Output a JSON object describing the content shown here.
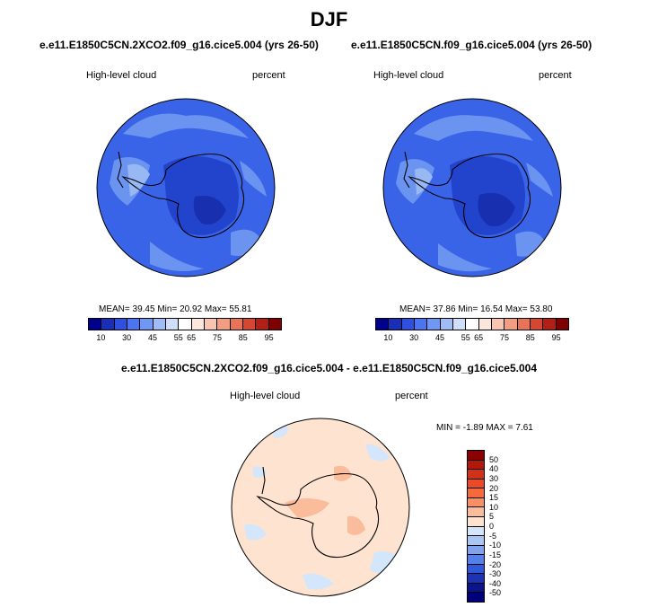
{
  "title": "DJF",
  "panels": [
    {
      "case": "e.e11.E1850C5CN.2XCO2.f09_g16.cice5.004 (yrs 26-50)",
      "variable": "High-level cloud",
      "units": "percent",
      "mean_label": "MEAN=",
      "mean": "39.45",
      "min_label": "Min=",
      "min": "20.92",
      "max_label": "Max=",
      "max": "55.81"
    },
    {
      "case": "e.e11.E1850C5CN.f09_g16.cice5.004 (yrs 26-50)",
      "variable": "High-level cloud",
      "units": "percent",
      "mean_label": "MEAN=",
      "mean": "37.86",
      "min_label": "Min=",
      "min": "16.54",
      "max_label": "Max=",
      "max": "53.80"
    }
  ],
  "diff_panel": {
    "title": "e.e11.E1850C5CN.2XCO2.f09_g16.cice5.004 - e.e11.E1850C5CN.f09_g16.cice5.004",
    "variable": "High-level cloud",
    "units": "percent",
    "min_label": "MIN =",
    "min": "-1.89",
    "max_label": "MAX =",
    "max": "7.61"
  },
  "colorbar_abs": {
    "tick_labels": [
      "10",
      "30",
      "45",
      "55",
      "65",
      "75",
      "85",
      "95"
    ],
    "colors": [
      "#00008f",
      "#1a2fb8",
      "#2f4fe0",
      "#4a74f0",
      "#6f98f5",
      "#9fbcf6",
      "#cfdefa",
      "#ffffff",
      "#fde6dc",
      "#f8c5b0",
      "#f29e83",
      "#e87358",
      "#d54731",
      "#b21f14",
      "#800000"
    ]
  },
  "colorbar_diff": {
    "tick_labels": [
      "50",
      "40",
      "30",
      "20",
      "15",
      "10",
      "5",
      "0",
      "-5",
      "-10",
      "-15",
      "-20",
      "-30",
      "-40",
      "-50"
    ],
    "colors": [
      "#8b0000",
      "#b2170b",
      "#d3301a",
      "#ea4a26",
      "#f46a3c",
      "#f88f65",
      "#fbbc9c",
      "#fde3d0",
      "#d4e6fb",
      "#a9c6f4",
      "#7fa3ee",
      "#5580ea",
      "#2f58dc",
      "#1b33b4",
      "#0a158c",
      "#00007a"
    ]
  },
  "map_colors": {
    "abs_background": "#3a64e8",
    "abs_dark": "#2244cc",
    "abs_darker": "#1830b0",
    "abs_light": "#6b93f0",
    "abs_lighter": "#98b8f4",
    "diff_background": "#fde3d0",
    "diff_warm": "#fbbc9c",
    "diff_cool": "#d4e6fb"
  }
}
